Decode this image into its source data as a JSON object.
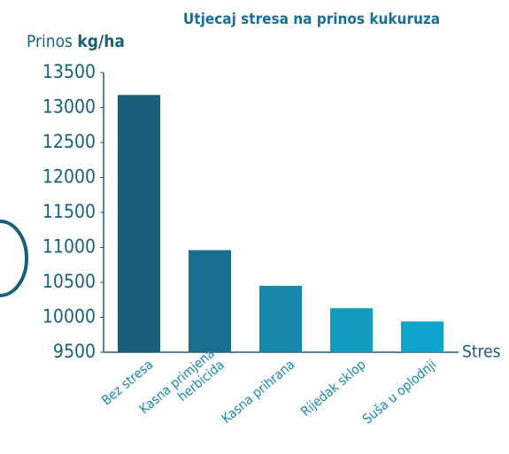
{
  "chart_data": {
    "type": "bar",
    "title": "Utjecaj stresa na prinos kukuruza",
    "y_label": {
      "text": "Prinos",
      "unit": "kg/ha"
    },
    "x_label": "Stres",
    "categories": [
      "Bez stresa",
      [
        "Kasna primjena",
        "herbicida"
      ],
      "Kasna prihrana",
      "Rijedak sklop",
      "Suša u oplodnji"
    ],
    "values": [
      13180,
      10960,
      10450,
      10130,
      9940
    ],
    "colors": [
      "#1a5f7a",
      "#1b6f8e",
      "#1789a8",
      "#139cc0",
      "#0ea3c9"
    ],
    "ylim": [
      9500,
      13500
    ],
    "yticks": [
      9500,
      10000,
      10500,
      11000,
      11500,
      12000,
      12500,
      13000,
      13500
    ],
    "grid": false
  }
}
